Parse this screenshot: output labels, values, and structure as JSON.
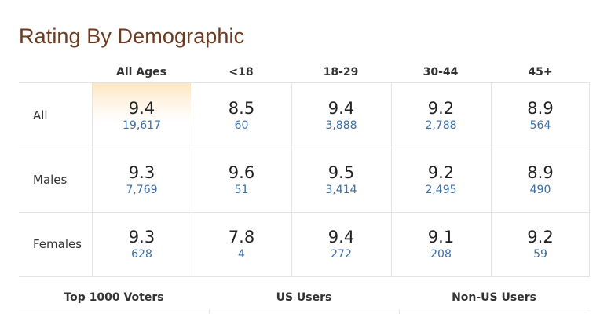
{
  "title": "Rating By Demographic",
  "columns": [
    "All Ages",
    "<18",
    "18-29",
    "30-44",
    "45+"
  ],
  "rows": [
    {
      "label": "All",
      "cells": [
        {
          "rating": "9.4",
          "votes": "19,617"
        },
        {
          "rating": "8.5",
          "votes": "60"
        },
        {
          "rating": "9.4",
          "votes": "3,888"
        },
        {
          "rating": "9.2",
          "votes": "2,788"
        },
        {
          "rating": "8.9",
          "votes": "564"
        }
      ]
    },
    {
      "label": "Males",
      "cells": [
        {
          "rating": "9.3",
          "votes": "7,769"
        },
        {
          "rating": "9.6",
          "votes": "51"
        },
        {
          "rating": "9.5",
          "votes": "3,414"
        },
        {
          "rating": "9.2",
          "votes": "2,495"
        },
        {
          "rating": "8.9",
          "votes": "490"
        }
      ]
    },
    {
      "label": "Females",
      "cells": [
        {
          "rating": "9.3",
          "votes": "628"
        },
        {
          "rating": "7.8",
          "votes": "4"
        },
        {
          "rating": "9.4",
          "votes": "272"
        },
        {
          "rating": "9.1",
          "votes": "208"
        },
        {
          "rating": "9.2",
          "votes": "59"
        }
      ]
    }
  ],
  "footer": [
    "Top 1000 Voters",
    "US Users",
    "Non-US Users"
  ],
  "colors": {
    "title": "#6b3a1f",
    "vote_count": "#3a6ea5",
    "highlight": "#fde6c3",
    "grid_line": "#e3e3e3"
  }
}
